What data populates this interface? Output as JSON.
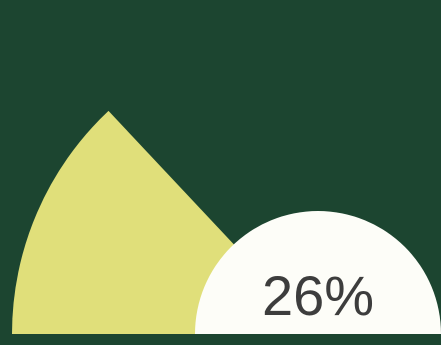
{
  "gauge": {
    "value_label": "26%",
    "value_fraction": 0.26,
    "colors": {
      "background": "#1c4530",
      "arc_fill": "#e0df7a",
      "center_fill": "#fdfdf8",
      "text": "#3d3d3d"
    }
  }
}
